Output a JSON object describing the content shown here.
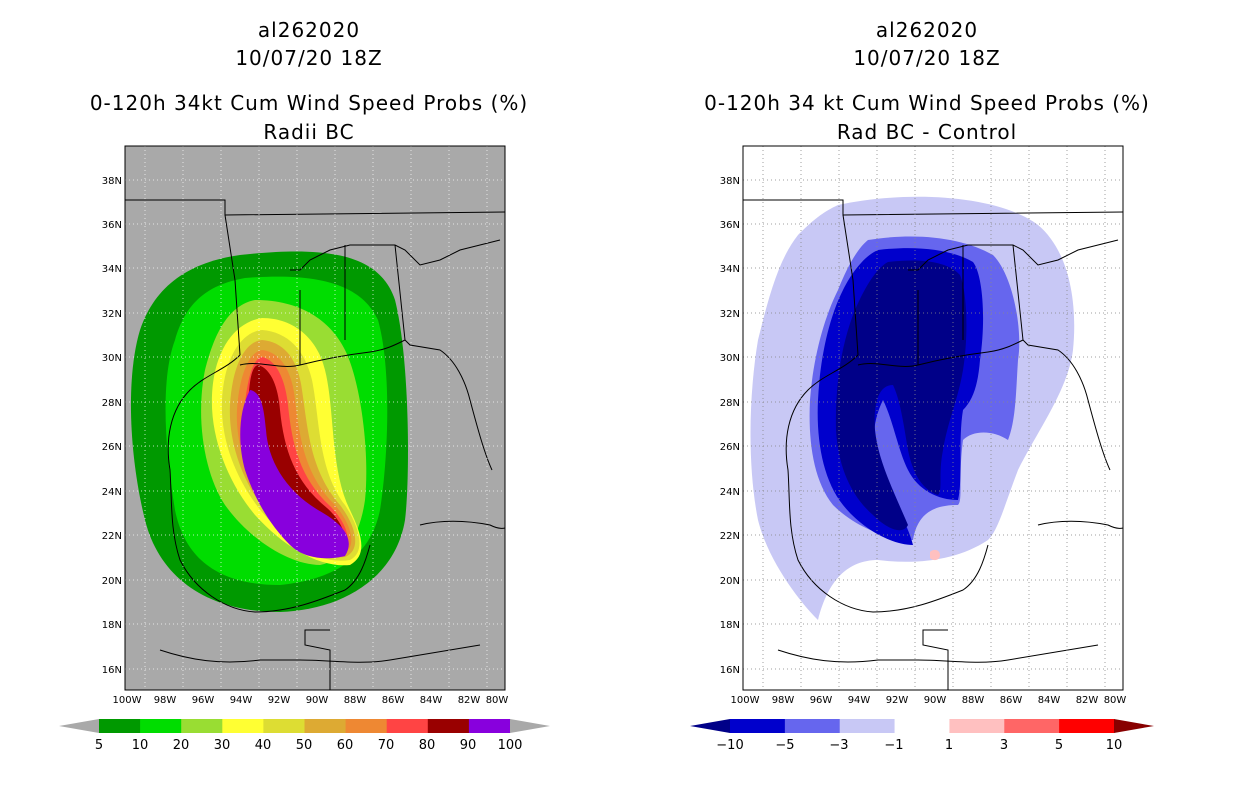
{
  "panels": [
    {
      "id": "radii-bc",
      "storm_id": "al262020",
      "datetime": "10/07/20 18Z",
      "product": "0-120h 34kt Cum Wind Speed Probs (%)",
      "subtitle": "Radii BC",
      "map_background": "#a9a9a9",
      "colorbar": {
        "labels": [
          "5",
          "10",
          "20",
          "30",
          "40",
          "50",
          "60",
          "70",
          "80",
          "90",
          "100"
        ],
        "colors": [
          "#009900",
          "#00dd00",
          "#99dd33",
          "#ffff33",
          "#dddd33",
          "#ddaa33",
          "#ee8833",
          "#ff4444",
          "#990000",
          "#8800dd"
        ],
        "under_color": "#a9a9a9",
        "over_color": "#a9a9a9"
      }
    },
    {
      "id": "rad-bc-control",
      "storm_id": "al262020",
      "datetime": "10/07/20 18Z",
      "product": "0-120h 34 kt Cum Wind Speed Probs (%)",
      "subtitle": "Rad BC - Control",
      "map_background": "#ffffff",
      "colorbar": {
        "labels": [
          "−10",
          "−5",
          "−3",
          "−1",
          "1",
          "3",
          "5",
          "10"
        ],
        "colors": [
          "#0000cc",
          "#6666ee",
          "#c8c8f5",
          "#ffffff",
          "#ffc0c0",
          "#ff6666",
          "#ff0000"
        ],
        "under_color": "#000088",
        "over_color": "#880000"
      }
    }
  ],
  "axes": {
    "lat_labels": [
      "38N",
      "36N",
      "34N",
      "32N",
      "30N",
      "28N",
      "26N",
      "24N",
      "22N",
      "20N",
      "18N",
      "16N"
    ],
    "lon_labels": [
      "100W",
      "98W",
      "96W",
      "94W",
      "92W",
      "90W",
      "88W",
      "86W",
      "84W",
      "82W",
      "80W"
    ]
  }
}
